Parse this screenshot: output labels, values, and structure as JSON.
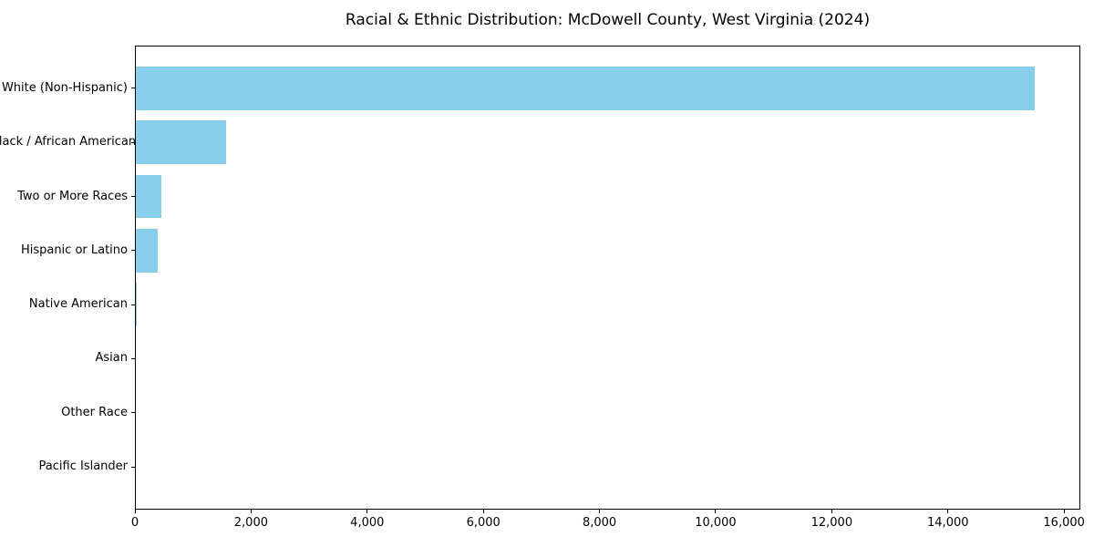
{
  "chart_data": {
    "type": "bar",
    "orientation": "horizontal",
    "title": "Racial & Ethnic Distribution: McDowell County, West Virginia (2024)",
    "categories": [
      "White (Non-Hispanic)",
      "Black / African American",
      "Two or More Races",
      "Hispanic or Latino",
      "Native American",
      "Asian",
      "Other Race",
      "Pacific Islander"
    ],
    "values": [
      15500,
      1570,
      450,
      400,
      25,
      15,
      10,
      5
    ],
    "xlabel": "",
    "ylabel": "",
    "xlim": [
      0,
      16280
    ],
    "x_ticks": [
      0,
      2000,
      4000,
      6000,
      8000,
      10000,
      12000,
      14000,
      16000
    ],
    "x_tick_labels": [
      "0",
      "2,000",
      "4,000",
      "6,000",
      "8,000",
      "10,000",
      "12,000",
      "14,000",
      "16,000"
    ],
    "bar_color": "#87CEEB",
    "background_color": "#FFFFFF",
    "axis_color": "#000000",
    "grid": false,
    "legend": null
  }
}
